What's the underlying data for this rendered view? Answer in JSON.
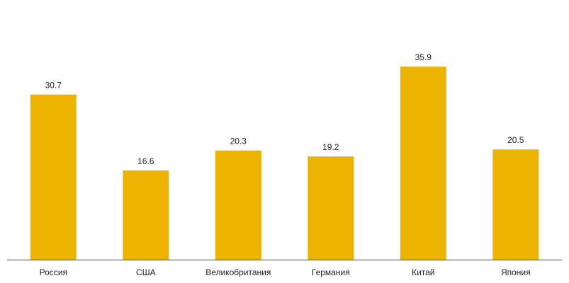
{
  "chart_data": {
    "type": "bar",
    "categories": [
      "Россия",
      "США",
      "Великобритания",
      "Германия",
      "Китай",
      "Япония"
    ],
    "values": [
      30.7,
      16.6,
      20.3,
      19.2,
      35.9,
      20.5
    ],
    "title": "",
    "xlabel": "",
    "ylabel": "",
    "ylim": [
      0,
      40
    ],
    "grid": false,
    "legend": "none",
    "bar_color": "#ECB400",
    "axis_color": "#444444",
    "data_labels": true
  }
}
